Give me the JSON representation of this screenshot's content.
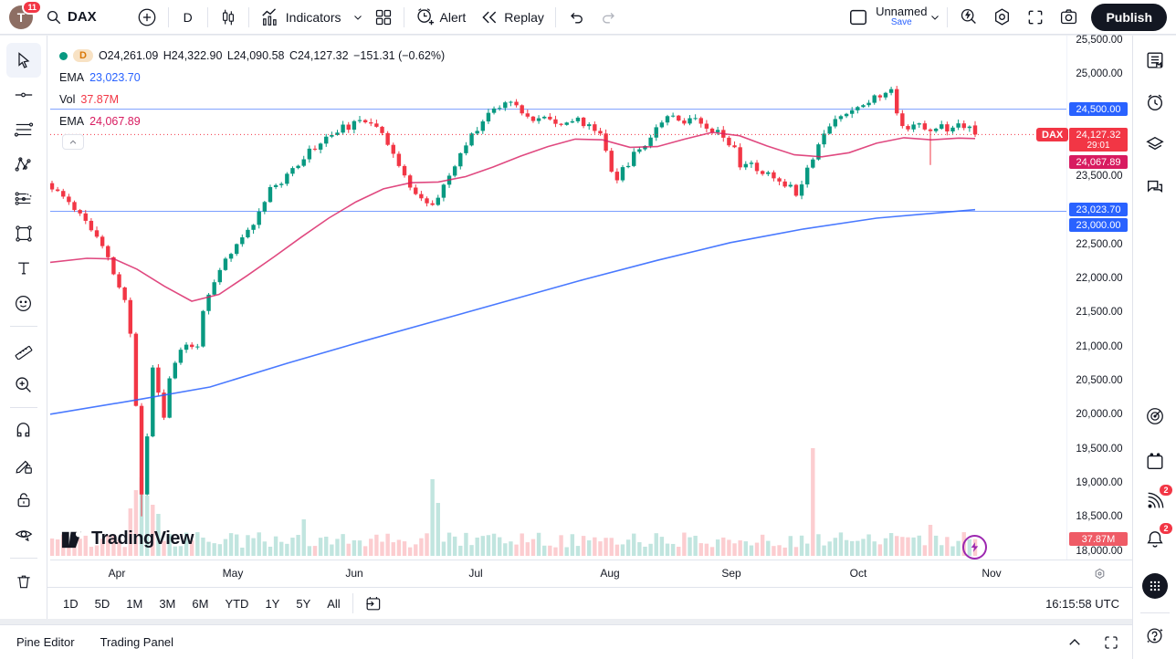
{
  "header": {
    "avatar_initial": "T",
    "notifications_count": "11",
    "symbol": "DAX",
    "interval": "D",
    "indicators_label": "Indicators",
    "alert_label": "Alert",
    "replay_label": "Replay",
    "layout_name": "Unnamed",
    "save_label": "Save",
    "publish_label": "Publish"
  },
  "legend": {
    "series_badge": "D",
    "ohlc": {
      "open": "O24,261.09",
      "high": "H24,322.90",
      "low": "L24,090.58",
      "close": "C24,127.32",
      "change": "−151.31 (−0.62%)"
    },
    "ema_slow_label": "EMA",
    "ema_slow_value": "23,023.70",
    "vol_label": "Vol",
    "vol_value": "37.87M",
    "ema_fast_label": "EMA",
    "ema_fast_value": "24,067.89"
  },
  "watermark": {
    "brand": "TradingView"
  },
  "price_axis": {
    "ticks": [
      [
        25500,
        "25,500.00"
      ],
      [
        25000,
        "25,000.00"
      ],
      [
        23500,
        "23,500.00"
      ],
      [
        22500,
        "22,500.00"
      ],
      [
        22000,
        "22,000.00"
      ],
      [
        21500,
        "21,500.00"
      ],
      [
        21000,
        "21,000.00"
      ],
      [
        20500,
        "20,500.00"
      ],
      [
        20000,
        "20,000.00"
      ],
      [
        19500,
        "19,500.00"
      ],
      [
        19000,
        "19,000.00"
      ],
      [
        18500,
        "18,500.00"
      ],
      [
        18000,
        "18,000.00"
      ]
    ],
    "labels": [
      {
        "name": "level-24500",
        "text": "24,500.00",
        "top": 73,
        "bg": "#2962ff"
      },
      {
        "name": "last-price",
        "text": "24,127.32",
        "sub": "29:01",
        "top": 101,
        "bg": "#f23645"
      },
      {
        "name": "ema-fast",
        "text": "24,067.89",
        "top": 131,
        "bg": "#d81b60"
      },
      {
        "name": "ema-slow",
        "text": "23,023.70",
        "top": 183,
        "bg": "#2962ff"
      },
      {
        "name": "level-23000",
        "text": "23,000.00",
        "top": 200,
        "bg": "#2962ff"
      },
      {
        "name": "volume",
        "text": "37.87M",
        "top": 544,
        "bg": "#ef5b66"
      }
    ],
    "dax_tag": "DAX"
  },
  "time_axis": {
    "months": [
      [
        73,
        "Apr"
      ],
      [
        200,
        "May"
      ],
      [
        333,
        "Jun"
      ],
      [
        466,
        "Jul"
      ],
      [
        613,
        "Aug"
      ],
      [
        746,
        "Sep"
      ],
      [
        885,
        "Oct"
      ],
      [
        1031,
        "Nov"
      ]
    ]
  },
  "bottom_toolbar": {
    "ranges": [
      "1D",
      "5D",
      "1M",
      "3M",
      "6M",
      "YTD",
      "1Y",
      "5Y",
      "All"
    ],
    "clock": "16:15:58 UTC"
  },
  "pine_bar": {
    "tabs": [
      "Pine Editor",
      "Trading Panel"
    ]
  },
  "icons": {
    "header": [
      "search-icon",
      "plus-icon",
      "candles-icon",
      "indicators-icon",
      "chevron-down-icon",
      "grid-layout-icon",
      "alert-clock-icon",
      "replay-icon",
      "undo-icon",
      "redo-icon",
      "layout-square-icon",
      "quick-search-icon",
      "settings-gear-icon",
      "fullscreen-icon",
      "camera-icon"
    ],
    "left_toolbar": [
      "cursor-icon",
      "trend-line-icon",
      "fib-retracement-icon",
      "pattern-icon",
      "projection-icon",
      "shapes-icon",
      "text-icon",
      "emoji-icon",
      "ruler-icon",
      "zoom-in-icon",
      "magnet-icon",
      "draw-lock-icon",
      "lock-icon",
      "eye-icon",
      "trash-icon"
    ],
    "right_sidebar": [
      "watchlist-icon",
      "alerts-clock-icon",
      "object-tree-icon",
      "chat-icon",
      "screener-radar-icon",
      "calendar-icon",
      "news-icon",
      "bell-icon",
      "apps-grid-icon",
      "help-icon"
    ],
    "misc": [
      "go-to-date-icon",
      "axis-settings-gear-icon",
      "panel-collapse-icon",
      "panel-maximize-icon",
      "lightning-icon"
    ]
  },
  "chart_data": {
    "type": "candlestick",
    "symbol": "DAX",
    "interval": "D",
    "title": "DAX daily candlestick chart with volume, EMA fast (pink) and EMA slow (blue)",
    "legend_ohlc": {
      "open": 24261.09,
      "high": 24322.9,
      "low": 24090.58,
      "close": 24127.32,
      "change": -151.31,
      "change_pct": -0.62
    },
    "current_price": 24127.32,
    "countdown": "29:01",
    "ema_fast_value": 24067.89,
    "ema_slow_value": 23023.7,
    "volume_display": "37.87M",
    "key_levels": [
      24500,
      23000
    ],
    "ylim": [
      17950,
      25580
    ],
    "x_months": [
      "Apr",
      "May",
      "Jun",
      "Jul",
      "Aug",
      "Sep",
      "Oct",
      "Nov"
    ],
    "seed": 11,
    "candle_count": 166,
    "x_range": [
      2,
      1013
    ],
    "price_path": [
      [
        2,
        23320
      ],
      [
        20,
        23150
      ],
      [
        40,
        22850
      ],
      [
        60,
        22400
      ],
      [
        75,
        21900
      ],
      [
        85,
        21560
      ],
      [
        91,
        20800
      ],
      [
        95,
        19900
      ],
      [
        99,
        18900
      ],
      [
        102,
        18750
      ],
      [
        107,
        19900
      ],
      [
        113,
        20800
      ],
      [
        119,
        20300
      ],
      [
        125,
        19950
      ],
      [
        131,
        20600
      ],
      [
        140,
        20900
      ],
      [
        150,
        21050
      ],
      [
        160,
        20950
      ],
      [
        167,
        21500
      ],
      [
        177,
        21850
      ],
      [
        190,
        22250
      ],
      [
        203,
        22470
      ],
      [
        215,
        22700
      ],
      [
        228,
        22950
      ],
      [
        240,
        23360
      ],
      [
        255,
        23420
      ],
      [
        270,
        23700
      ],
      [
        285,
        23900
      ],
      [
        300,
        24050
      ],
      [
        315,
        24200
      ],
      [
        335,
        24280
      ],
      [
        353,
        24340
      ],
      [
        365,
        24150
      ],
      [
        377,
        23800
      ],
      [
        388,
        23480
      ],
      [
        400,
        23300
      ],
      [
        415,
        23060
      ],
      [
        425,
        23200
      ],
      [
        437,
        23500
      ],
      [
        450,
        23850
      ],
      [
        463,
        24150
      ],
      [
        477,
        24400
      ],
      [
        490,
        24550
      ],
      [
        508,
        24650
      ],
      [
        517,
        24480
      ],
      [
        530,
        24300
      ],
      [
        545,
        24400
      ],
      [
        560,
        24280
      ],
      [
        575,
        24350
      ],
      [
        590,
        24250
      ],
      [
        603,
        24150
      ],
      [
        613,
        23700
      ],
      [
        619,
        23450
      ],
      [
        627,
        23600
      ],
      [
        640,
        23850
      ],
      [
        655,
        24050
      ],
      [
        667,
        24300
      ],
      [
        680,
        24470
      ],
      [
        693,
        24300
      ],
      [
        707,
        24380
      ],
      [
        720,
        24250
      ],
      [
        735,
        24150
      ],
      [
        750,
        23900
      ],
      [
        753,
        23600
      ],
      [
        760,
        23750
      ],
      [
        770,
        23650
      ],
      [
        783,
        23550
      ],
      [
        795,
        23480
      ],
      [
        807,
        23400
      ],
      [
        817,
        23280
      ],
      [
        825,
        23500
      ],
      [
        835,
        23800
      ],
      [
        845,
        24100
      ],
      [
        857,
        24300
      ],
      [
        870,
        24450
      ],
      [
        885,
        24550
      ],
      [
        900,
        24650
      ],
      [
        913,
        24720
      ],
      [
        923,
        24780
      ],
      [
        929,
        24350
      ],
      [
        935,
        24200
      ],
      [
        943,
        24300
      ],
      [
        953,
        24250
      ],
      [
        962,
        24150
      ],
      [
        973,
        24280
      ],
      [
        983,
        24220
      ],
      [
        993,
        24300
      ],
      [
        1003,
        24260
      ],
      [
        1009,
        24261
      ],
      [
        1013,
        24127.3
      ]
    ],
    "ema_fast_path": [
      [
        0,
        22250
      ],
      [
        40,
        22310
      ],
      [
        70,
        22300
      ],
      [
        95,
        22150
      ],
      [
        125,
        21900
      ],
      [
        155,
        21680
      ],
      [
        185,
        21780
      ],
      [
        215,
        22050
      ],
      [
        245,
        22330
      ],
      [
        275,
        22620
      ],
      [
        305,
        22900
      ],
      [
        335,
        23140
      ],
      [
        365,
        23330
      ],
      [
        395,
        23420
      ],
      [
        425,
        23430
      ],
      [
        455,
        23510
      ],
      [
        485,
        23650
      ],
      [
        515,
        23810
      ],
      [
        545,
        23950
      ],
      [
        575,
        24060
      ],
      [
        605,
        24050
      ],
      [
        635,
        23940
      ],
      [
        665,
        23950
      ],
      [
        695,
        24060
      ],
      [
        725,
        24160
      ],
      [
        755,
        24110
      ],
      [
        785,
        23960
      ],
      [
        815,
        23830
      ],
      [
        845,
        23800
      ],
      [
        875,
        23860
      ],
      [
        905,
        24000
      ],
      [
        935,
        24080
      ],
      [
        965,
        24050
      ],
      [
        995,
        24075
      ],
      [
        1013,
        24067.89
      ]
    ],
    "ema_slow_path": [
      [
        0,
        20020
      ],
      [
        95,
        20230
      ],
      [
        175,
        20420
      ],
      [
        260,
        20770
      ],
      [
        345,
        21100
      ],
      [
        425,
        21400
      ],
      [
        505,
        21700
      ],
      [
        585,
        22000
      ],
      [
        665,
        22280
      ],
      [
        745,
        22540
      ],
      [
        825,
        22740
      ],
      [
        905,
        22900
      ],
      [
        1013,
        23023.7
      ]
    ],
    "volume_spikes": [
      {
        "x": 85,
        "h": 52,
        "c": "d"
      },
      {
        "x": 91,
        "h": 72,
        "c": "d"
      },
      {
        "x": 97,
        "h": 98,
        "c": "u"
      },
      {
        "x": 103,
        "h": 86,
        "c": "u"
      },
      {
        "x": 109,
        "h": 66,
        "c": "u"
      },
      {
        "x": 115,
        "h": 56,
        "c": "d"
      },
      {
        "x": 121,
        "h": 46,
        "c": "u"
      },
      {
        "x": 275,
        "h": 40,
        "c": "u"
      },
      {
        "x": 417,
        "h": 84,
        "c": "u"
      },
      {
        "x": 423,
        "h": 58,
        "c": "u"
      },
      {
        "x": 834,
        "h": 118,
        "c": "d"
      },
      {
        "x": 962,
        "h": 34,
        "c": "d"
      }
    ],
    "wick_events": [
      {
        "x": 99,
        "low": 18520
      },
      {
        "x": 962,
        "low": 23680
      }
    ],
    "colors": {
      "up": "#089981",
      "down": "#f23645",
      "vol_up": "rgba(8,153,129,0.25)",
      "vol_down": "rgba(242,54,69,0.25)",
      "ema_fast": "#d81b60",
      "ema_slow": "#2962ff",
      "level": "#2962ff",
      "price_line": "#f23645"
    }
  }
}
